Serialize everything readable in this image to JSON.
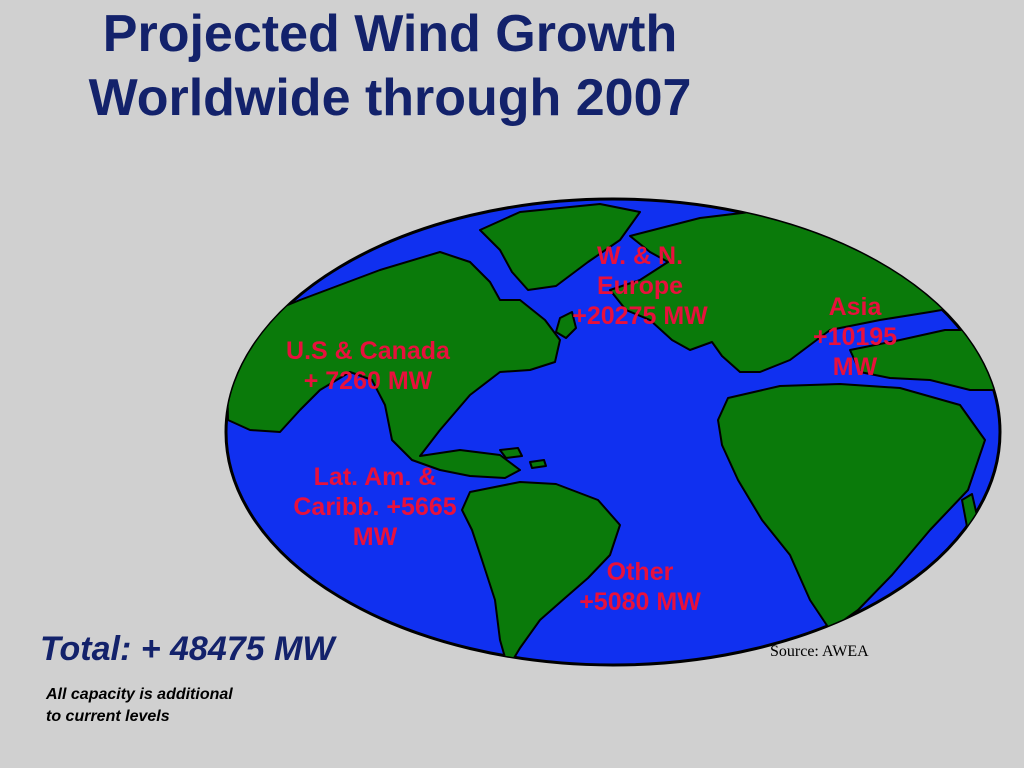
{
  "title": {
    "line1": "Projected Wind Growth",
    "line2": "Worldwide through 2007"
  },
  "regions": [
    {
      "lines": [
        "U.S & Canada",
        "+ 7260 MW"
      ]
    },
    {
      "lines": [
        "W. & N.",
        "Europe",
        "+20275 MW"
      ]
    },
    {
      "lines": [
        "Asia",
        "+10195",
        "MW"
      ]
    },
    {
      "lines": [
        "Lat. Am. &",
        "Caribb. +5665",
        "MW"
      ]
    },
    {
      "lines": [
        "Other",
        "+5080 MW"
      ]
    }
  ],
  "total": "Total: + 48475 MW",
  "note": {
    "line1": "All capacity is additional",
    "line2": "to current levels"
  },
  "source": "Source: AWEA",
  "colors": {
    "background": "#d0d0d0",
    "title": "#13226b",
    "ocean": "#1030f0",
    "land": "#0a7a0a",
    "region_label": "#e8103c"
  },
  "map_icon": "world-map-atlantic-view"
}
